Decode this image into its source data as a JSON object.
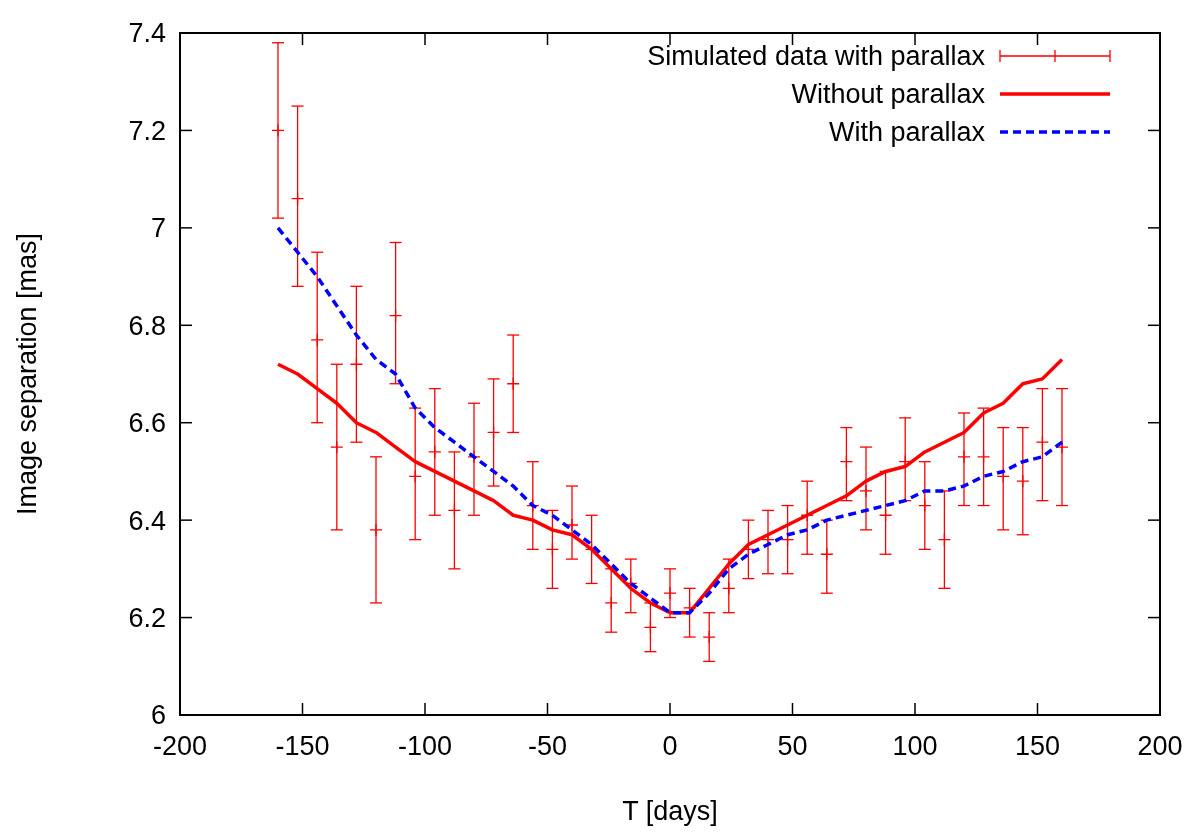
{
  "chart_data": {
    "type": "line",
    "xlabel": "T [days]",
    "ylabel": "Image separation [mas]",
    "xlim": [
      -200,
      200
    ],
    "xticks": [
      -200,
      -150,
      -100,
      -50,
      0,
      50,
      100,
      150,
      200
    ],
    "ylim": [
      6,
      7.4
    ],
    "yticks": [
      6,
      6.2,
      6.4,
      6.6,
      6.8,
      7,
      7.2,
      7.4
    ],
    "grid": false,
    "legend": "top right",
    "series": [
      {
        "name": "Simulated data with parallax",
        "type": "scatter",
        "color": "#ff0000",
        "marker": "cross",
        "x": [
          -160,
          -152,
          -144,
          -136,
          -128,
          -120,
          -112,
          -104,
          -96,
          -88,
          -80,
          -72,
          -64,
          -56,
          -48,
          -40,
          -32,
          -24,
          -16,
          -8,
          0,
          8,
          16,
          24,
          32,
          40,
          48,
          56,
          64,
          72,
          80,
          88,
          96,
          104,
          112,
          120,
          128,
          136,
          144,
          152,
          160
        ],
        "values": [
          7.2,
          7.06,
          6.77,
          6.55,
          6.72,
          6.38,
          6.82,
          6.49,
          6.54,
          6.42,
          6.53,
          6.58,
          6.68,
          6.43,
          6.34,
          6.39,
          6.34,
          6.23,
          6.27,
          6.18,
          6.25,
          6.22,
          6.16,
          6.26,
          6.34,
          6.36,
          6.36,
          6.41,
          6.33,
          6.52,
          6.46,
          6.41,
          6.52,
          6.43,
          6.36,
          6.53,
          6.53,
          6.49,
          6.48,
          6.56,
          6.55
        ],
        "errors": [
          [
            7.02,
            7.38
          ],
          [
            6.88,
            7.25
          ],
          [
            6.6,
            6.95
          ],
          [
            6.38,
            6.72
          ],
          [
            6.56,
            6.88
          ],
          [
            6.23,
            6.53
          ],
          [
            6.68,
            6.97
          ],
          [
            6.36,
            6.63
          ],
          [
            6.41,
            6.67
          ],
          [
            6.3,
            6.54
          ],
          [
            6.41,
            6.64
          ],
          [
            6.47,
            6.69
          ],
          [
            6.58,
            6.78
          ],
          [
            6.34,
            6.52
          ],
          [
            6.26,
            6.42
          ],
          [
            6.32,
            6.47
          ],
          [
            6.27,
            6.41
          ],
          [
            6.17,
            6.3
          ],
          [
            6.21,
            6.32
          ],
          [
            6.13,
            6.23
          ],
          [
            6.2,
            6.3
          ],
          [
            6.16,
            6.26
          ],
          [
            6.11,
            6.21
          ],
          [
            6.21,
            6.32
          ],
          [
            6.28,
            6.4
          ],
          [
            6.29,
            6.42
          ],
          [
            6.29,
            6.43
          ],
          [
            6.33,
            6.48
          ],
          [
            6.25,
            6.4
          ],
          [
            6.44,
            6.59
          ],
          [
            6.38,
            6.55
          ],
          [
            6.33,
            6.5
          ],
          [
            6.44,
            6.61
          ],
          [
            6.34,
            6.52
          ],
          [
            6.26,
            6.46
          ],
          [
            6.43,
            6.62
          ],
          [
            6.43,
            6.63
          ],
          [
            6.38,
            6.59
          ],
          [
            6.37,
            6.59
          ],
          [
            6.44,
            6.67
          ],
          [
            6.43,
            6.67
          ]
        ]
      },
      {
        "name": "Without parallax",
        "color": "#ff0000",
        "line_style": "solid",
        "x": [
          -160,
          -152,
          -144,
          -136,
          -128,
          -120,
          -112,
          -104,
          -96,
          -88,
          -80,
          -72,
          -64,
          -56,
          -48,
          -40,
          -32,
          -24,
          -16,
          -8,
          0,
          8,
          16,
          24,
          32,
          40,
          48,
          56,
          64,
          72,
          80,
          88,
          96,
          104,
          112,
          120,
          128,
          136,
          144,
          152,
          160
        ],
        "values": [
          6.72,
          6.7,
          6.67,
          6.64,
          6.6,
          6.58,
          6.55,
          6.52,
          6.5,
          6.48,
          6.46,
          6.44,
          6.41,
          6.4,
          6.38,
          6.37,
          6.34,
          6.3,
          6.26,
          6.23,
          6.21,
          6.21,
          6.26,
          6.31,
          6.35,
          6.37,
          6.39,
          6.41,
          6.43,
          6.45,
          6.48,
          6.5,
          6.51,
          6.54,
          6.56,
          6.58,
          6.62,
          6.64,
          6.68,
          6.69,
          6.73
        ]
      },
      {
        "name": "With parallax",
        "type": "line",
        "color": "#0000ff",
        "line_style": "dashed",
        "x": [
          -160,
          -152,
          -144,
          -136,
          -128,
          -120,
          -112,
          -104,
          -96,
          -88,
          -80,
          -72,
          -64,
          -56,
          -48,
          -40,
          -32,
          -24,
          -16,
          -8,
          0,
          8,
          16,
          24,
          32,
          40,
          48,
          56,
          64,
          72,
          80,
          88,
          96,
          104,
          112,
          120,
          128,
          136,
          144,
          152,
          160
        ],
        "values": [
          7,
          6.95,
          6.9,
          6.84,
          6.78,
          6.73,
          6.7,
          6.63,
          6.59,
          6.56,
          6.53,
          6.5,
          6.47,
          6.43,
          6.41,
          6.38,
          6.35,
          6.31,
          6.27,
          6.24,
          6.21,
          6.21,
          6.25,
          6.3,
          6.33,
          6.35,
          6.37,
          6.38,
          6.4,
          6.41,
          6.42,
          6.43,
          6.44,
          6.46,
          6.46,
          6.47,
          6.49,
          6.5,
          6.52,
          6.53,
          6.56
        ]
      }
    ]
  }
}
